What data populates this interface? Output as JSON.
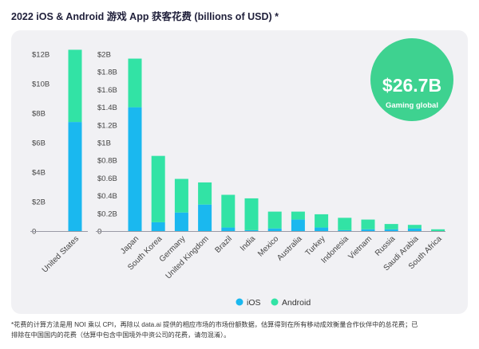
{
  "title": "2022 iOS & Android 游戏 App 获客花费 (billions of USD) *",
  "colors": {
    "ios": "#1ab8ef",
    "android": "#32e3a5",
    "badge": "#3ed290",
    "panel": "#f1f1f4",
    "text": "#1f1f3a"
  },
  "badge": {
    "value": "$26.7B",
    "label": "Gaming global"
  },
  "legend": {
    "ios": "iOS",
    "android": "Android"
  },
  "footnote": {
    "line1": "*花费的计算方法是用 NOI 乘以 CPI，再除以 data.ai 提供的相应市场的市场份额数据，估算得到在所有移动成效衡量合作伙伴中的总花费；已",
    "line2": "排除在中国国内的花费（估算中包含中国境外中资公司的花费，请勿混淆）。"
  },
  "chart_data": [
    {
      "type": "bar",
      "stacked": true,
      "categories": [
        "United States"
      ],
      "series": [
        {
          "name": "iOS",
          "values": [
            7.4
          ]
        },
        {
          "name": "Android",
          "values": [
            4.9
          ]
        }
      ],
      "ylim": [
        0,
        12
      ],
      "yticks": [
        0,
        2,
        4,
        6,
        8,
        10,
        12
      ],
      "ytick_labels": [
        "0",
        "$2B",
        "$4B",
        "$6B",
        "$8B",
        "$10B",
        "$12B"
      ],
      "grid": false
    },
    {
      "type": "bar",
      "stacked": true,
      "categories": [
        "Japan",
        "South Korea",
        "Germany",
        "United Kingdom",
        "Brazil",
        "India",
        "Mexico",
        "Australia",
        "Turkey",
        "Indonesia",
        "Vietnam",
        "Russia",
        "Saudi Arabia",
        "South Africa"
      ],
      "series": [
        {
          "name": "iOS",
          "values": [
            1.4,
            0.1,
            0.21,
            0.3,
            0.04,
            0.01,
            0.03,
            0.13,
            0.04,
            0.01,
            0.02,
            0.02,
            0.03,
            0.0
          ]
        },
        {
          "name": "Android",
          "values": [
            0.55,
            0.75,
            0.38,
            0.25,
            0.37,
            0.36,
            0.19,
            0.09,
            0.15,
            0.14,
            0.11,
            0.06,
            0.04,
            0.02
          ]
        }
      ],
      "ylim": [
        0,
        2
      ],
      "yticks": [
        0,
        0.2,
        0.4,
        0.6,
        0.8,
        1.0,
        1.2,
        1.4,
        1.6,
        1.8,
        2.0
      ],
      "ytick_labels": [
        "0",
        "$0.2B",
        "$0.4B",
        "$0.6B",
        "$0.8B",
        "$1B",
        "$1.2B",
        "$1.4B",
        "$1.6B",
        "$1.8B",
        "$2B"
      ],
      "grid": false,
      "legend": "bottom-right"
    }
  ]
}
